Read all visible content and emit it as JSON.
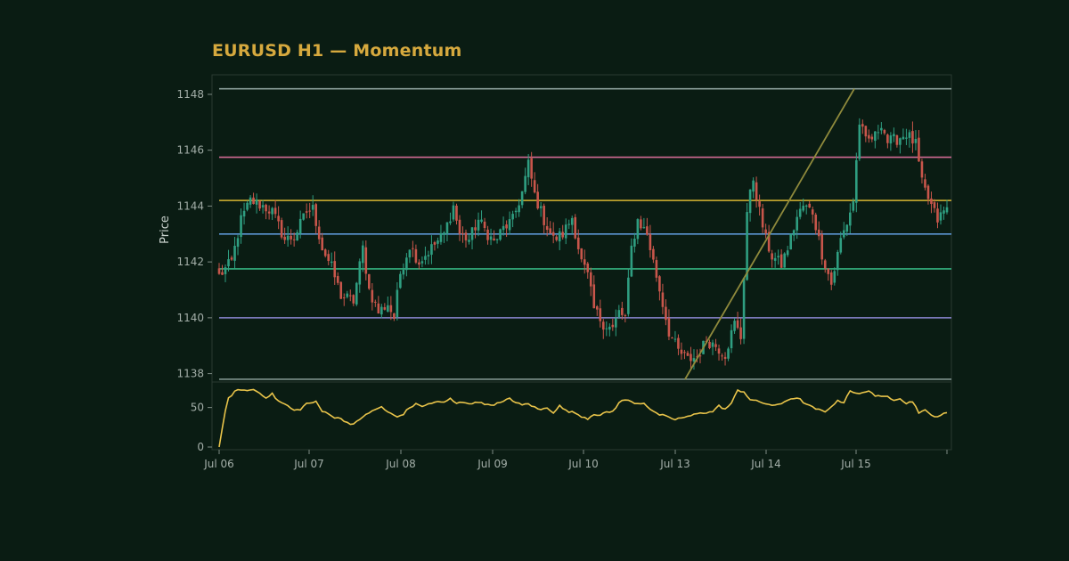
{
  "chart_data": {
    "type": "candlestick",
    "title": "EURUSD H1 — Momentum",
    "ylabel": "Price",
    "ylim": [
      1137.7,
      1148.7
    ],
    "yticks": [
      1138,
      1140,
      1142,
      1144,
      1146,
      1148
    ],
    "indicator_ylim": [
      0,
      80
    ],
    "indicator_yticks": [
      0,
      50
    ],
    "x_range": [
      "2025-07-06 00:00",
      "2025-07-15 23:00"
    ],
    "xtick_labels": [
      "Jul 06",
      "Jul 07",
      "Jul 08",
      "Jul 09",
      "Jul 10",
      "Jul 13",
      "Jul 14",
      "Jul 15"
    ],
    "grid": false,
    "colors": {
      "background": "#0a1c13",
      "up": "#2f9e81",
      "down": "#c8564b",
      "indicator": "#e9c44a",
      "trendline": "#8f8a3c",
      "axis": "#2a3a31",
      "tick_text": "#a3aea8"
    },
    "levels": [
      {
        "value": 1148.2,
        "color": "#8a9e99"
      },
      {
        "value": 1145.75,
        "color": "#d26a94"
      },
      {
        "value": 1144.2,
        "color": "#d9b632"
      },
      {
        "value": 1143.0,
        "color": "#5c96d4"
      },
      {
        "value": 1141.75,
        "color": "#34b07f"
      },
      {
        "value": 1140.0,
        "color": "#8a86d0"
      },
      {
        "value": 1137.8,
        "color": "#8a9e99"
      }
    ],
    "trendline": {
      "from": {
        "x": "Jul 13 03:00",
        "y": 1137.8
      },
      "to": {
        "x": "Jul 14 23:00",
        "y": 1148.2
      }
    },
    "candles": {
      "anchors": [
        {
          "i": 0,
          "c": 1141.5
        },
        {
          "i": 4,
          "c": 1142.0
        },
        {
          "i": 7,
          "c": 1143.5
        },
        {
          "i": 10,
          "c": 1144.2
        },
        {
          "i": 14,
          "c": 1144.0
        },
        {
          "i": 17,
          "c": 1143.8
        },
        {
          "i": 21,
          "c": 1142.8
        },
        {
          "i": 24,
          "c": 1142.9
        },
        {
          "i": 28,
          "c": 1143.8
        },
        {
          "i": 30,
          "c": 1143.9
        },
        {
          "i": 33,
          "c": 1142.5
        },
        {
          "i": 36,
          "c": 1141.8
        },
        {
          "i": 39,
          "c": 1140.8
        },
        {
          "i": 43,
          "c": 1140.6
        },
        {
          "i": 46,
          "c": 1142.5
        },
        {
          "i": 48,
          "c": 1141.0
        },
        {
          "i": 51,
          "c": 1140.2
        },
        {
          "i": 54,
          "c": 1140.5
        },
        {
          "i": 56,
          "c": 1140.0
        },
        {
          "i": 58,
          "c": 1141.6
        },
        {
          "i": 61,
          "c": 1142.6
        },
        {
          "i": 64,
          "c": 1142.0
        },
        {
          "i": 68,
          "c": 1142.5
        },
        {
          "i": 72,
          "c": 1143.0
        },
        {
          "i": 75,
          "c": 1144.0
        },
        {
          "i": 77,
          "c": 1143.0
        },
        {
          "i": 80,
          "c": 1142.8
        },
        {
          "i": 83,
          "c": 1143.5
        },
        {
          "i": 86,
          "c": 1143.0
        },
        {
          "i": 88,
          "c": 1142.7
        },
        {
          "i": 91,
          "c": 1143.2
        },
        {
          "i": 94,
          "c": 1143.5
        },
        {
          "i": 97,
          "c": 1144.5
        },
        {
          "i": 99,
          "c": 1145.5
        },
        {
          "i": 101,
          "c": 1144.4
        },
        {
          "i": 104,
          "c": 1143.5
        },
        {
          "i": 107,
          "c": 1142.8
        },
        {
          "i": 110,
          "c": 1143.0
        },
        {
          "i": 113,
          "c": 1143.6
        },
        {
          "i": 116,
          "c": 1142.0
        },
        {
          "i": 118,
          "c": 1141.5
        },
        {
          "i": 120,
          "c": 1140.3
        },
        {
          "i": 123,
          "c": 1139.8
        },
        {
          "i": 126,
          "c": 1139.6
        },
        {
          "i": 128,
          "c": 1140.2
        },
        {
          "i": 130,
          "c": 1140.0
        },
        {
          "i": 132,
          "c": 1142.5
        },
        {
          "i": 134,
          "c": 1143.5
        },
        {
          "i": 137,
          "c": 1143.0
        },
        {
          "i": 140,
          "c": 1141.5
        },
        {
          "i": 142,
          "c": 1140.5
        },
        {
          "i": 144,
          "c": 1139.5
        },
        {
          "i": 147,
          "c": 1138.8
        },
        {
          "i": 150,
          "c": 1138.5
        },
        {
          "i": 153,
          "c": 1138.6
        },
        {
          "i": 156,
          "c": 1139.2
        },
        {
          "i": 159,
          "c": 1139.0
        },
        {
          "i": 162,
          "c": 1138.7
        },
        {
          "i": 165,
          "c": 1139.8
        },
        {
          "i": 167,
          "c": 1139.3
        },
        {
          "i": 169,
          "c": 1143.8
        },
        {
          "i": 171,
          "c": 1145.0
        },
        {
          "i": 173,
          "c": 1143.8
        },
        {
          "i": 175,
          "c": 1142.8
        },
        {
          "i": 177,
          "c": 1142.2
        },
        {
          "i": 180,
          "c": 1141.9
        },
        {
          "i": 182,
          "c": 1142.5
        },
        {
          "i": 185,
          "c": 1143.6
        },
        {
          "i": 187,
          "c": 1144.0
        },
        {
          "i": 190,
          "c": 1143.8
        },
        {
          "i": 193,
          "c": 1142.3
        },
        {
          "i": 196,
          "c": 1141.2
        },
        {
          "i": 199,
          "c": 1142.8
        },
        {
          "i": 201,
          "c": 1143.4
        },
        {
          "i": 203,
          "c": 1144.2
        },
        {
          "i": 205,
          "c": 1147.0
        },
        {
          "i": 207,
          "c": 1146.3
        },
        {
          "i": 210,
          "c": 1146.5
        },
        {
          "i": 212,
          "c": 1147.0
        },
        {
          "i": 214,
          "c": 1146.3
        },
        {
          "i": 217,
          "c": 1146.4
        },
        {
          "i": 220,
          "c": 1146.6
        },
        {
          "i": 223,
          "c": 1146.2
        },
        {
          "i": 225,
          "c": 1144.8
        },
        {
          "i": 228,
          "c": 1144.0
        },
        {
          "i": 230,
          "c": 1143.5
        },
        {
          "i": 232,
          "c": 1143.8
        },
        {
          "i": 233,
          "c": 1143.9
        }
      ]
    },
    "indicator": {
      "anchors": [
        {
          "i": 0,
          "v": 0
        },
        {
          "i": 2,
          "v": 45
        },
        {
          "i": 3,
          "v": 62
        },
        {
          "i": 5,
          "v": 70
        },
        {
          "i": 7,
          "v": 73
        },
        {
          "i": 9,
          "v": 71
        },
        {
          "i": 11,
          "v": 73
        },
        {
          "i": 13,
          "v": 68
        },
        {
          "i": 15,
          "v": 63
        },
        {
          "i": 17,
          "v": 67
        },
        {
          "i": 19,
          "v": 58
        },
        {
          "i": 22,
          "v": 52
        },
        {
          "i": 24,
          "v": 46
        },
        {
          "i": 26,
          "v": 48
        },
        {
          "i": 28,
          "v": 55
        },
        {
          "i": 31,
          "v": 57
        },
        {
          "i": 33,
          "v": 45
        },
        {
          "i": 35,
          "v": 43
        },
        {
          "i": 37,
          "v": 37
        },
        {
          "i": 39,
          "v": 36
        },
        {
          "i": 41,
          "v": 31
        },
        {
          "i": 43,
          "v": 29
        },
        {
          "i": 45,
          "v": 34
        },
        {
          "i": 47,
          "v": 42
        },
        {
          "i": 49,
          "v": 45
        },
        {
          "i": 52,
          "v": 51
        },
        {
          "i": 54,
          "v": 44
        },
        {
          "i": 57,
          "v": 38
        },
        {
          "i": 59,
          "v": 42
        },
        {
          "i": 61,
          "v": 50
        },
        {
          "i": 63,
          "v": 54
        },
        {
          "i": 65,
          "v": 52
        },
        {
          "i": 68,
          "v": 55
        },
        {
          "i": 70,
          "v": 58
        },
        {
          "i": 72,
          "v": 56
        },
        {
          "i": 74,
          "v": 61
        },
        {
          "i": 76,
          "v": 55
        },
        {
          "i": 78,
          "v": 57
        },
        {
          "i": 81,
          "v": 55
        },
        {
          "i": 84,
          "v": 57
        },
        {
          "i": 86,
          "v": 53
        },
        {
          "i": 88,
          "v": 54
        },
        {
          "i": 91,
          "v": 57
        },
        {
          "i": 93,
          "v": 62
        },
        {
          "i": 95,
          "v": 56
        },
        {
          "i": 97,
          "v": 53
        },
        {
          "i": 99,
          "v": 55
        },
        {
          "i": 101,
          "v": 50
        },
        {
          "i": 103,
          "v": 47
        },
        {
          "i": 105,
          "v": 50
        },
        {
          "i": 107,
          "v": 44
        },
        {
          "i": 109,
          "v": 52
        },
        {
          "i": 111,
          "v": 46
        },
        {
          "i": 114,
          "v": 43
        },
        {
          "i": 116,
          "v": 39
        },
        {
          "i": 118,
          "v": 36
        },
        {
          "i": 120,
          "v": 42
        },
        {
          "i": 122,
          "v": 40
        },
        {
          "i": 124,
          "v": 44
        },
        {
          "i": 126,
          "v": 45
        },
        {
          "i": 128,
          "v": 56
        },
        {
          "i": 130,
          "v": 60
        },
        {
          "i": 132,
          "v": 57
        },
        {
          "i": 134,
          "v": 55
        },
        {
          "i": 136,
          "v": 56
        },
        {
          "i": 138,
          "v": 48
        },
        {
          "i": 140,
          "v": 42
        },
        {
          "i": 142,
          "v": 40
        },
        {
          "i": 144,
          "v": 37
        },
        {
          "i": 146,
          "v": 35
        },
        {
          "i": 148,
          "v": 37
        },
        {
          "i": 150,
          "v": 38
        },
        {
          "i": 152,
          "v": 41
        },
        {
          "i": 154,
          "v": 44
        },
        {
          "i": 156,
          "v": 43
        },
        {
          "i": 158,
          "v": 45
        },
        {
          "i": 160,
          "v": 52
        },
        {
          "i": 162,
          "v": 48
        },
        {
          "i": 164,
          "v": 55
        },
        {
          "i": 166,
          "v": 72
        },
        {
          "i": 168,
          "v": 70
        },
        {
          "i": 170,
          "v": 60
        },
        {
          "i": 172,
          "v": 58
        },
        {
          "i": 174,
          "v": 56
        },
        {
          "i": 176,
          "v": 54
        },
        {
          "i": 178,
          "v": 52
        },
        {
          "i": 180,
          "v": 55
        },
        {
          "i": 182,
          "v": 60
        },
        {
          "i": 184,
          "v": 62
        },
        {
          "i": 186,
          "v": 60
        },
        {
          "i": 188,
          "v": 54
        },
        {
          "i": 190,
          "v": 50
        },
        {
          "i": 192,
          "v": 47
        },
        {
          "i": 194,
          "v": 44
        },
        {
          "i": 196,
          "v": 52
        },
        {
          "i": 198,
          "v": 58
        },
        {
          "i": 200,
          "v": 57
        },
        {
          "i": 202,
          "v": 72
        },
        {
          "i": 204,
          "v": 67
        },
        {
          "i": 206,
          "v": 68
        },
        {
          "i": 208,
          "v": 72
        },
        {
          "i": 210,
          "v": 65
        },
        {
          "i": 212,
          "v": 63
        },
        {
          "i": 214,
          "v": 64
        },
        {
          "i": 216,
          "v": 60
        },
        {
          "i": 218,
          "v": 62
        },
        {
          "i": 220,
          "v": 55
        },
        {
          "i": 222,
          "v": 58
        },
        {
          "i": 224,
          "v": 44
        },
        {
          "i": 226,
          "v": 46
        },
        {
          "i": 228,
          "v": 40
        },
        {
          "i": 230,
          "v": 39
        },
        {
          "i": 233,
          "v": 43
        }
      ]
    }
  }
}
